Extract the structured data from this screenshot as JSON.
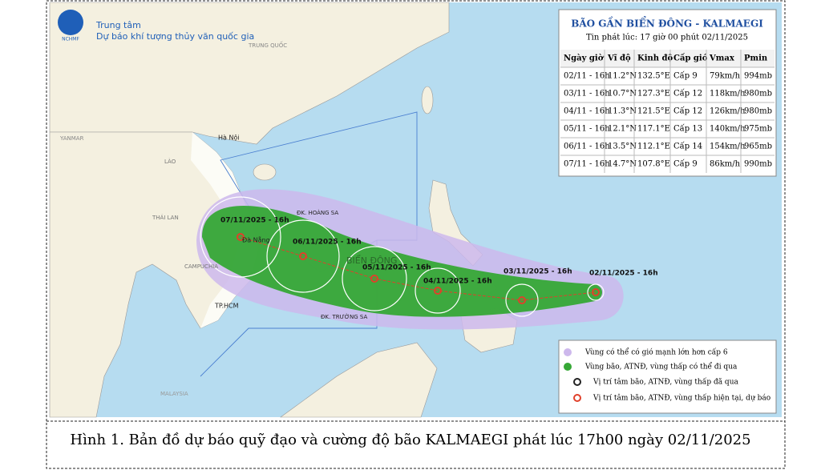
{
  "header": {
    "org_line1": "Trung tâm",
    "org_line2": "Dự báo khí tượng thủy văn quốc gia",
    "logo_text": "NCHMF"
  },
  "map_labels": [
    "TRUNG QUỐC",
    "YANMAR",
    "LÀO",
    "THÁI LAN",
    "CAMPUCHIA",
    "Hà Nội",
    "Đà Nẵng",
    "TP.HCM",
    "ĐK. HOÀNG SA",
    "ĐK. TRƯỜNG SA",
    "BIỂN ĐÔNG",
    "MALAYSIA"
  ],
  "table": {
    "title": "BÃO GẦN BIỂN ĐÔNG - KALMAEGI",
    "subtitle": "Tin phát lúc: 17 giờ 00 phút 02/11/2025",
    "columns": [
      "Ngày giờ",
      "Vĩ độ",
      "Kinh độ",
      "Cấp gió",
      "Vmax",
      "Pmin"
    ],
    "rows": [
      [
        "02/11 - 16h",
        "11.2°N",
        "132.5°E",
        "Cấp 9",
        "79km/h",
        "994mb"
      ],
      [
        "03/11 - 16h",
        "10.7°N",
        "127.3°E",
        "Cấp 12",
        "118km/h",
        "980mb"
      ],
      [
        "04/11 - 16h",
        "11.3°N",
        "121.5°E",
        "Cấp 12",
        "126km/h",
        "980mb"
      ],
      [
        "05/11 - 16h",
        "12.1°N",
        "117.1°E",
        "Cấp 13",
        "140km/h",
        "975mb"
      ],
      [
        "06/11 - 16h",
        "13.5°N",
        "112.1°E",
        "Cấp 14",
        "154km/h",
        "965mb"
      ],
      [
        "07/11 - 16h",
        "14.7°N",
        "107.8°E",
        "Cấp 9",
        "86km/h",
        "990mb"
      ]
    ]
  },
  "forecast_points": [
    "02/11/2025 - 16h",
    "03/11/2025 - 16h",
    "04/11/2025 - 16h",
    "05/11/2025 - 16h",
    "06/11/2025 - 16h",
    "07/11/2025 - 16h"
  ],
  "legend": [
    "Vùng có thể có gió mạnh lớn hơn cấp 6",
    "Vùng bão, ATNĐ, vùng thấp có thể đi qua",
    "Vị trí tâm bão, ATNĐ, vùng thấp đã qua",
    "Vị trí tâm bão, ATNĐ, vùng thấp hiện tại, dự báo"
  ],
  "caption": "Hình 1. Bản đồ dự báo quỹ đạo và cường độ bão KALMAEGI phát lúc 17h00 ngày 02/11/2025"
}
